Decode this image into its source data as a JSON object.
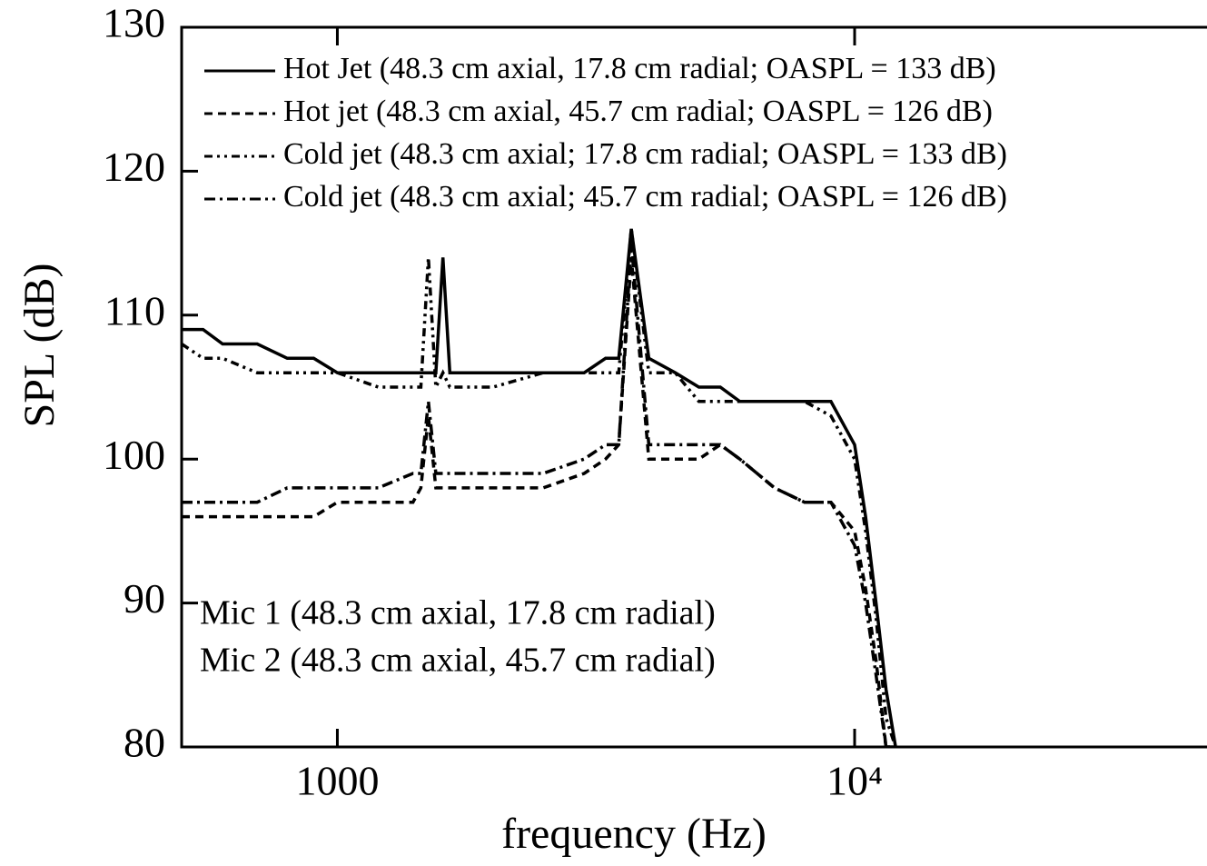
{
  "chart_data": {
    "type": "line",
    "xlabel": "frequency (Hz)",
    "ylabel": "SPL (dB)",
    "xscale": "log",
    "legend": "upper left",
    "xlim": [
      500,
      48000
    ],
    "ylim": [
      80,
      130
    ],
    "xticks": [
      1000,
      {
        "value": 10000,
        "label": "10⁴"
      }
    ],
    "yticks": [
      80,
      90,
      100,
      110,
      120,
      130
    ],
    "annotations": [
      "Mic 1 (48.3 cm axial, 17.8 cm radial)",
      "Mic 2 (48.3 cm axial, 45.7 cm radial)"
    ],
    "x": [
      500,
      550,
      600,
      700,
      800,
      900,
      1000,
      1200,
      1400,
      1450,
      1500,
      1550,
      1600,
      1650,
      1700,
      2000,
      2500,
      3000,
      3300,
      3500,
      3700,
      4000,
      4500,
      5000,
      5500,
      6000,
      7000,
      8000,
      9000,
      10000,
      10500,
      11000,
      11500,
      12000
    ],
    "series": [
      {
        "name": "Hot Jet (48.3 cm axial, 17.8 cm radial; OASPL = 133 dB)",
        "color": "#000000",
        "dash": "none",
        "values": [
          109,
          109,
          108,
          108,
          107,
          107,
          106,
          106,
          106,
          106,
          106,
          106,
          114,
          106,
          106,
          106,
          106,
          106,
          107,
          107,
          116,
          107,
          106,
          105,
          105,
          104,
          104,
          104,
          104,
          101,
          96,
          90,
          84,
          80
        ]
      },
      {
        "name": "Hot jet (48.3 cm axial, 45.7 cm radial; OASPL = 126 dB)",
        "color": "#000000",
        "dash": "9,6",
        "values": [
          96,
          96,
          96,
          96,
          96,
          96,
          97,
          97,
          97,
          98,
          103,
          98,
          98,
          98,
          98,
          98,
          98,
          99,
          100,
          101,
          114,
          100,
          100,
          100,
          101,
          100,
          98,
          97,
          97,
          95,
          91,
          86,
          80,
          80
        ]
      },
      {
        "name": "Cold jet (48.3 cm axial; 17.8 cm radial; OASPL = 133 dB)",
        "color": "#000000",
        "dash": "9,5,3,5,3,5",
        "values": [
          108,
          107,
          107,
          106,
          106,
          106,
          106,
          105,
          105,
          105,
          114,
          105,
          106,
          105,
          105,
          105,
          106,
          106,
          106,
          106,
          116,
          106,
          106,
          104,
          104,
          104,
          104,
          104,
          103,
          100,
          95,
          89,
          82,
          80
        ]
      },
      {
        "name": "Cold jet (48.3 cm axial; 45.7 cm radial; OASPL = 126 dB)",
        "color": "#000000",
        "dash": "12,5,3,5",
        "values": [
          97,
          97,
          97,
          97,
          98,
          98,
          98,
          98,
          99,
          99,
          104,
          99,
          99,
          99,
          99,
          99,
          99,
          100,
          101,
          101,
          115,
          101,
          101,
          101,
          101,
          100,
          98,
          97,
          97,
          94,
          90,
          85,
          80,
          80
        ]
      }
    ]
  }
}
